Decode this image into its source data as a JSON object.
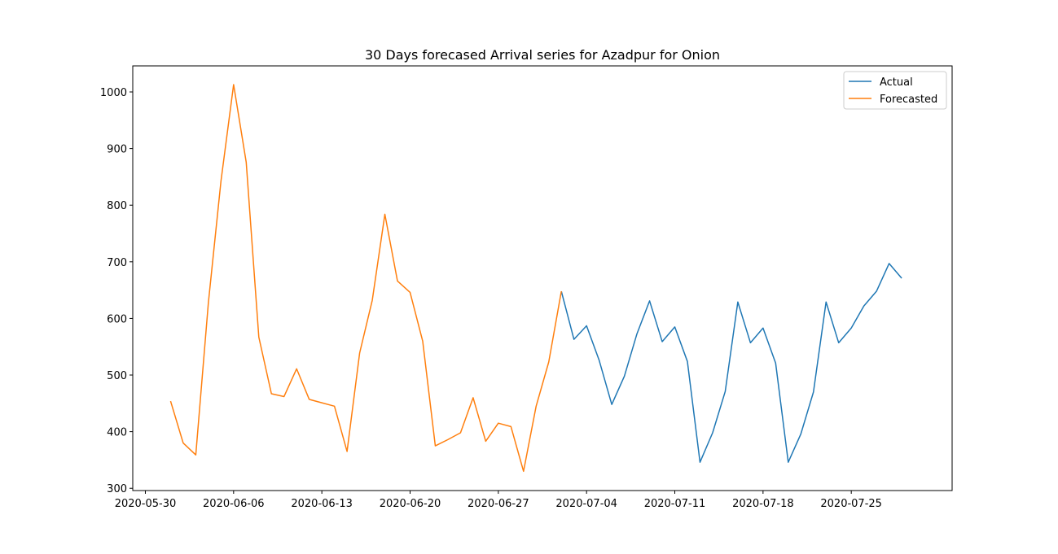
{
  "chart_data": {
    "type": "line",
    "title": "30 Days forecased Arrival series for Azadpur for Onion",
    "x": [
      "2020-06-01",
      "2020-06-02",
      "2020-06-03",
      "2020-06-04",
      "2020-06-05",
      "2020-06-06",
      "2020-06-07",
      "2020-06-08",
      "2020-06-09",
      "2020-06-10",
      "2020-06-11",
      "2020-06-12",
      "2020-06-13",
      "2020-06-14",
      "2020-06-15",
      "2020-06-16",
      "2020-06-17",
      "2020-06-18",
      "2020-06-19",
      "2020-06-20",
      "2020-06-21",
      "2020-06-22",
      "2020-06-23",
      "2020-06-24",
      "2020-06-25",
      "2020-06-26",
      "2020-06-27",
      "2020-06-28",
      "2020-06-29",
      "2020-06-30",
      "2020-07-01",
      "2020-07-02",
      "2020-07-03",
      "2020-07-04",
      "2020-07-05",
      "2020-07-06",
      "2020-07-07",
      "2020-07-08",
      "2020-07-09",
      "2020-07-10",
      "2020-07-11",
      "2020-07-12",
      "2020-07-13",
      "2020-07-14",
      "2020-07-15",
      "2020-07-16",
      "2020-07-17",
      "2020-07-18",
      "2020-07-19",
      "2020-07-20",
      "2020-07-21",
      "2020-07-22",
      "2020-07-23",
      "2020-07-24",
      "2020-07-25",
      "2020-07-26",
      "2020-07-27",
      "2020-07-28",
      "2020-07-29"
    ],
    "series": [
      {
        "name": "Actual",
        "color": "#1f77b4",
        "values": [
          null,
          null,
          null,
          null,
          null,
          null,
          null,
          null,
          null,
          null,
          null,
          null,
          null,
          null,
          null,
          null,
          null,
          null,
          null,
          null,
          null,
          null,
          null,
          null,
          null,
          null,
          null,
          null,
          null,
          null,
          null,
          648,
          563,
          587,
          526,
          448,
          498,
          573,
          631,
          559,
          585,
          524,
          346,
          398,
          471,
          629,
          557,
          583,
          521,
          346,
          396,
          470,
          629,
          557,
          583,
          622,
          648,
          697,
          671
        ]
      },
      {
        "name": "Forecasted",
        "color": "#ff7f0e",
        "values": [
          454,
          380,
          359,
          628,
          843,
          1013,
          876,
          567,
          467,
          462,
          511,
          457,
          451,
          445,
          365,
          539,
          632,
          784,
          666,
          646,
          560,
          375,
          386,
          398,
          460,
          383,
          415,
          409,
          330,
          445,
          523,
          648,
          null,
          null,
          null,
          null,
          null,
          null,
          null,
          null,
          null,
          null,
          null,
          null,
          null,
          null,
          null,
          null,
          null,
          null,
          null,
          null,
          null,
          null,
          null,
          null,
          null,
          null,
          null
        ]
      }
    ],
    "xlim": [
      "2020-05-29",
      "2020-08-02"
    ],
    "xticks": [
      "2020-05-30",
      "2020-06-06",
      "2020-06-13",
      "2020-06-20",
      "2020-06-27",
      "2020-07-04",
      "2020-07-11",
      "2020-07-18",
      "2020-07-25"
    ],
    "ylim": [
      296,
      1046
    ],
    "yticks": [
      300,
      400,
      500,
      600,
      700,
      800,
      900,
      1000
    ],
    "legend": "upper right"
  }
}
